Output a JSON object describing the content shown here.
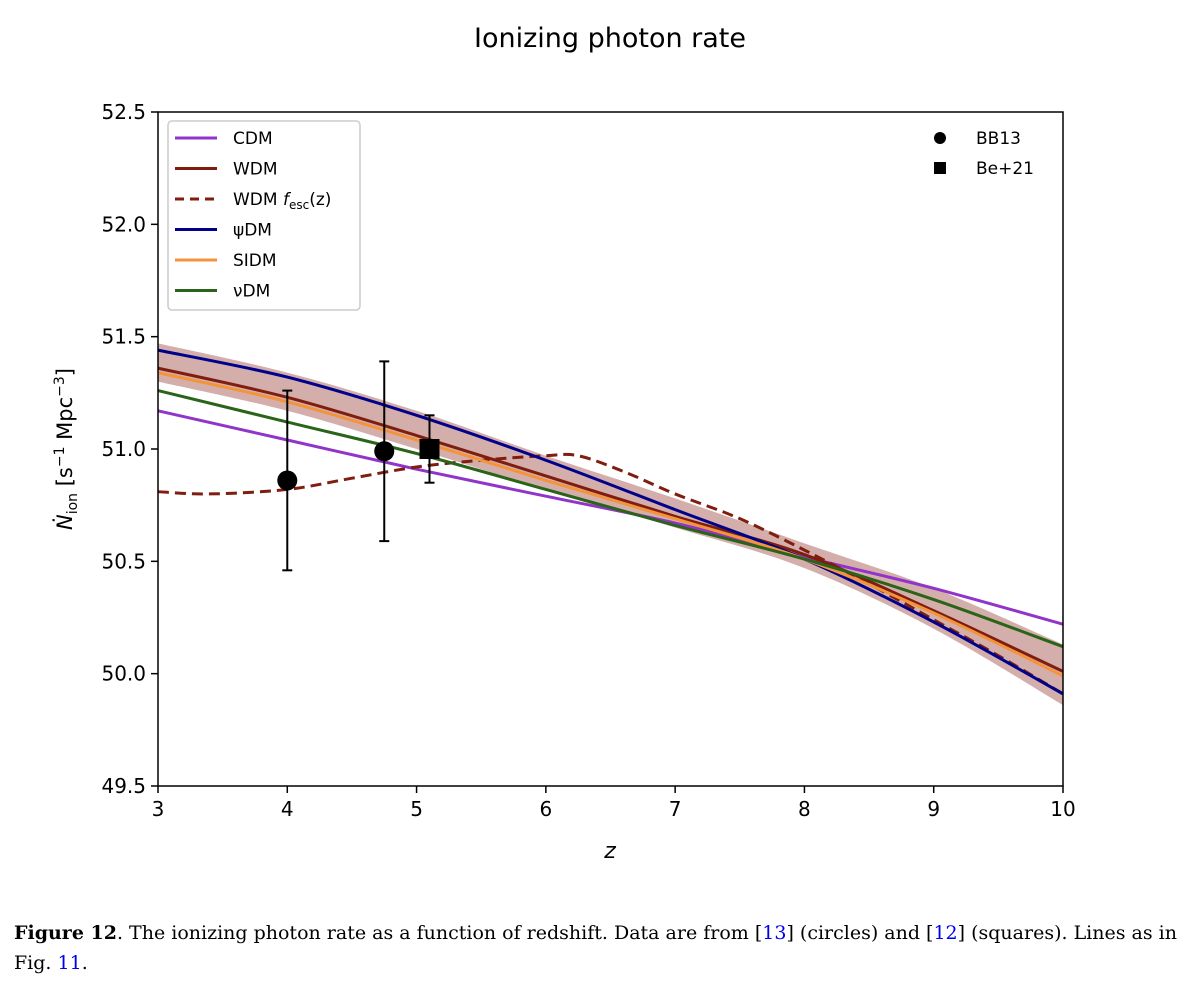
{
  "chart_data": {
    "type": "line",
    "title": "Ionizing photon rate",
    "xlabel": "z",
    "ylabel": "Ṅ_ion [s⁻¹ Mpc⁻³]",
    "xlim": [
      3,
      10
    ],
    "ylim": [
      49.5,
      52.5
    ],
    "xticks": [
      "3",
      "4",
      "5",
      "6",
      "7",
      "8",
      "9",
      "10"
    ],
    "yticks": [
      "49.5",
      "50.0",
      "50.5",
      "51.0",
      "51.5",
      "52.0",
      "52.5"
    ],
    "grid": false,
    "legend_lines_placement": "top-left",
    "legend_points_placement": "top-right",
    "x": [
      3,
      4,
      5,
      6,
      7,
      8,
      9,
      10
    ],
    "series": [
      {
        "name": "CDM",
        "color": "#9134c9",
        "style": "solid",
        "values": [
          51.17,
          51.04,
          50.91,
          50.79,
          50.67,
          50.52,
          50.38,
          50.22
        ]
      },
      {
        "name": "WDM",
        "color": "#7f1d0f",
        "style": "solid",
        "values": [
          51.36,
          51.23,
          51.06,
          50.88,
          50.7,
          50.53,
          50.28,
          50.01
        ]
      },
      {
        "name": "WDM f_esc(z)",
        "color": "#7f1d0f",
        "style": "dashed",
        "x": [
          3,
          3.4,
          4,
          4.5,
          5,
          5.5,
          6,
          6.25,
          6.6,
          7,
          7.5,
          8,
          8.5,
          9,
          9.5,
          10
        ],
        "values": [
          50.81,
          50.8,
          50.82,
          50.87,
          50.92,
          50.95,
          50.97,
          50.97,
          50.9,
          50.8,
          50.69,
          50.55,
          50.4,
          50.24,
          50.08,
          49.91
        ]
      },
      {
        "name": "ψDM",
        "color": "#00008b",
        "style": "solid",
        "values": [
          51.44,
          51.32,
          51.15,
          50.95,
          50.73,
          50.51,
          50.23,
          49.91
        ]
      },
      {
        "name": "SIDM",
        "color": "#f4943a",
        "style": "solid",
        "values": [
          51.34,
          51.21,
          51.04,
          50.86,
          50.69,
          50.51,
          50.27,
          49.99
        ]
      },
      {
        "name": "νDM",
        "color": "#2a6418",
        "style": "solid",
        "values": [
          51.26,
          51.12,
          50.98,
          50.82,
          50.66,
          50.51,
          50.33,
          50.12
        ]
      }
    ],
    "band": {
      "color": "#d4aeab",
      "lower": [
        51.3,
        51.17,
        51.0,
        50.82,
        50.65,
        50.47,
        50.2,
        49.86
      ],
      "upper": [
        51.47,
        51.34,
        51.17,
        50.97,
        50.78,
        50.58,
        50.38,
        50.13
      ]
    },
    "points": [
      {
        "name": "BB13",
        "marker": "circle",
        "data": [
          {
            "x": 4.0,
            "y": 50.86,
            "ylo": 50.46,
            "yhi": 51.26
          },
          {
            "x": 4.75,
            "y": 50.99,
            "ylo": 50.59,
            "yhi": 51.39
          }
        ]
      },
      {
        "name": "Be+21",
        "marker": "square",
        "data": [
          {
            "x": 5.1,
            "y": 51.0,
            "ylo": 50.85,
            "yhi": 51.15
          }
        ]
      }
    ]
  },
  "caption": {
    "label": "Figure 12",
    "text1": ". The ionizing photon rate as a function of redshift. Data are from [",
    "ref1": "13",
    "text2": "] (circles) and [",
    "ref2": "12",
    "text3": "] (squares). Lines as in Fig. ",
    "ref3": "11",
    "text4": "."
  }
}
